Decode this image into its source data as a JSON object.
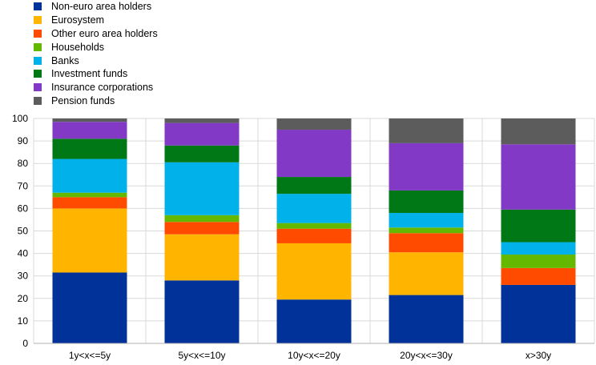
{
  "chart_data": {
    "type": "bar",
    "stacked": true,
    "categories": [
      "1y<x<=5y",
      "5y<x<=10y",
      "10y<x<=20y",
      "20y<x<=30y",
      "x>30y"
    ],
    "ylim": [
      0,
      100
    ],
    "yticks": [
      0,
      10,
      20,
      30,
      40,
      50,
      60,
      70,
      80,
      90,
      100
    ],
    "grid": "horizontal",
    "legend_position": "top-left",
    "series": [
      {
        "name": "Non-euro area holders",
        "color": "#003299",
        "values": [
          31.5,
          28,
          19.5,
          21.5,
          26
        ]
      },
      {
        "name": "Eurosystem",
        "color": "#FFB400",
        "values": [
          28.5,
          20.5,
          25,
          19,
          0
        ]
      },
      {
        "name": "Other euro area holders",
        "color": "#FF4B00",
        "values": [
          5,
          5.5,
          6.5,
          8.5,
          7.5
        ]
      },
      {
        "name": "Households",
        "color": "#65B800",
        "values": [
          2,
          3,
          2.5,
          2.5,
          6
        ]
      },
      {
        "name": "Banks",
        "color": "#00B1EA",
        "values": [
          15,
          23.5,
          13,
          6.5,
          5.5
        ]
      },
      {
        "name": "Investment funds",
        "color": "#007816",
        "values": [
          9,
          7.5,
          7.5,
          10,
          14.5
        ]
      },
      {
        "name": "Insurance corporations",
        "color": "#8139C6",
        "values": [
          7.5,
          10,
          21,
          21,
          29
        ]
      },
      {
        "name": "Pension funds",
        "color": "#5C5C5C",
        "values": [
          1.5,
          2,
          5,
          11,
          11.5
        ]
      }
    ]
  }
}
